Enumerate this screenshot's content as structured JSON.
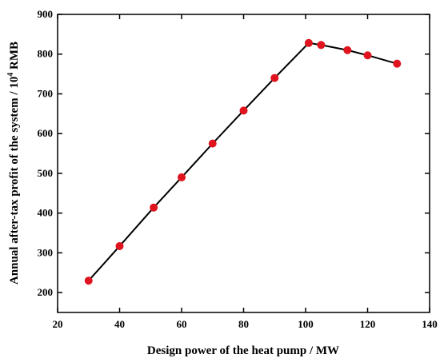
{
  "chart_data": {
    "type": "line",
    "xlabel": "Design power of the heat pump / MW",
    "ylabel": {
      "prefix": "Annual after-tax profit of the system / 10",
      "superscript": "4",
      "suffix": " RMB"
    },
    "xlim": [
      20,
      140
    ],
    "ylim": [
      150,
      900
    ],
    "xticks": [
      20,
      40,
      60,
      80,
      100,
      120,
      140
    ],
    "yticks": [
      200,
      300,
      400,
      500,
      600,
      700,
      800,
      900
    ],
    "grid": false,
    "legend": "none",
    "series": [
      {
        "line_color": "#000000",
        "marker_color": "#e0141e",
        "points": [
          {
            "x": 30,
            "y": 230
          },
          {
            "x": 40,
            "y": 317
          },
          {
            "x": 51,
            "y": 414
          },
          {
            "x": 60,
            "y": 490
          },
          {
            "x": 70,
            "y": 575
          },
          {
            "x": 80,
            "y": 658
          },
          {
            "x": 90,
            "y": 740
          },
          {
            "x": 101,
            "y": 828
          },
          {
            "x": 105,
            "y": 823
          },
          {
            "x": 113.5,
            "y": 810
          },
          {
            "x": 120,
            "y": 797
          },
          {
            "x": 129.5,
            "y": 776
          }
        ]
      }
    ]
  }
}
